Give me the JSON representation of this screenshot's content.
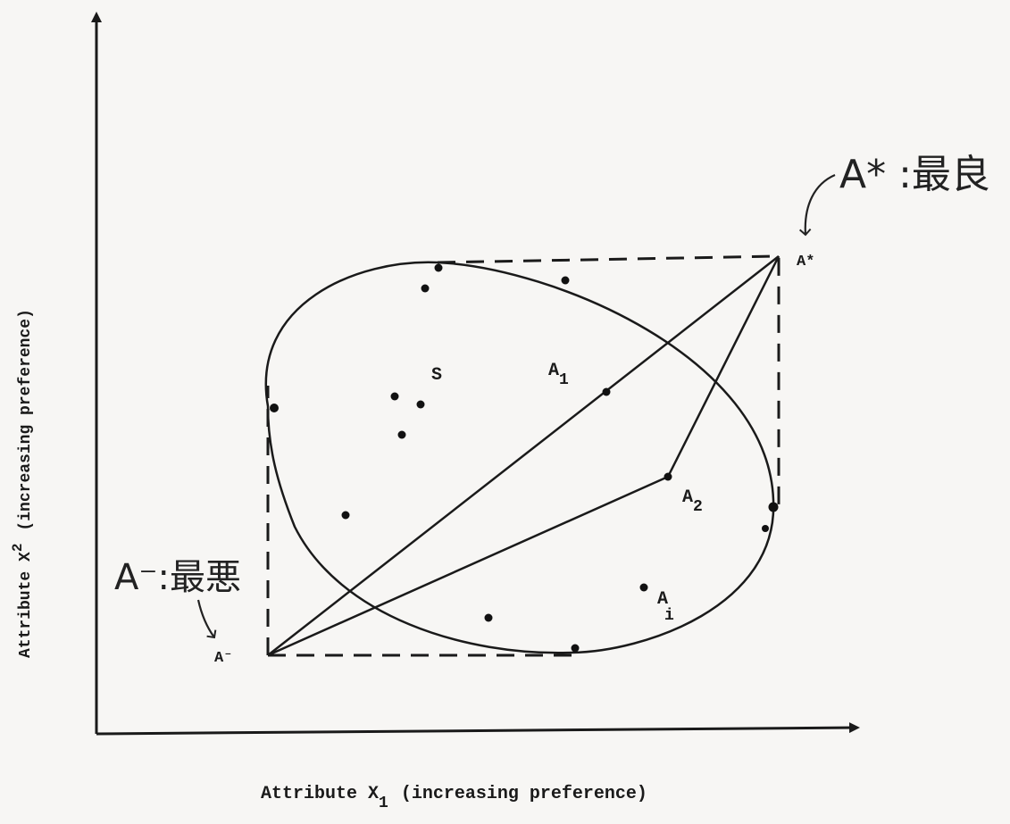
{
  "axes": {
    "x_label_prefix": "Attribute X",
    "x_label_sub": "1",
    "x_label_suffix": "(increasing preference)",
    "y_label_prefix": "Attribute X",
    "y_label_sub": "2",
    "y_label_suffix": "(increasing preference)"
  },
  "points": {
    "ideal": "A*",
    "anti_ideal": "A⁻",
    "a1": "A",
    "a1_sub": "1",
    "a2": "A",
    "a2_sub": "2",
    "ai": "A",
    "ai_sub": "i",
    "set": "S"
  },
  "annotations": {
    "best": "A* :最良",
    "worst": "A⁻:最悪"
  }
}
